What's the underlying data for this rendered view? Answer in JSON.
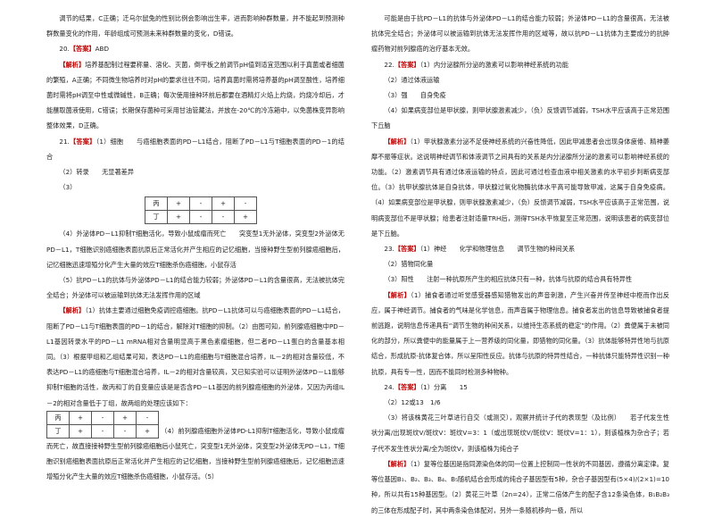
{
  "left": [
    {
      "text": "调节的结果，C正确；迁乌尔鼠兔的性别比例会影响出生率，进而影响种群数量，并不能起到预测种群数量变化的作用，年龄组成可预测未来种群数量的变化，D错误。"
    },
    {
      "lead": "20.",
      "tag": "【答案】",
      "text": "ABD"
    },
    {
      "tag": "【解析】",
      "text": "培养基配制过程要称量、溶化、灭菌，倒平板之前调节pH值到适宜范围以利于真菌或者细菌的繁殖，A正确；不同微生物培养时对pH的要求往往不同，培养真菌时需将培养基的pH调至酸性，培养细菌时需将pH调至中性或微碱性，B正确；每次使用接种环前后都要在酒精灯火焰上灼烧，灼烧冷却后，才能蘸取菌液使用，C错误；长期保存菌种可采用甘油管藏法，并放在-20℃的冷冻箱中，以免菌株变异影响整体效果，D正确。"
    },
    {
      "lead": "21.",
      "tag": "【答案】",
      "text": "（1）细胞　　与癌细胞表面的PD－L1结合，阻断了PD－L1与T细胞表面的PD－1的结合"
    },
    {
      "text": "（2）转录　　无显著差异"
    },
    {
      "text": "（3）"
    },
    {
      "table": [
        [
          "丙",
          "+",
          "-",
          "+",
          "-"
        ],
        [
          "丁",
          "+",
          "-",
          "-",
          "+"
        ]
      ]
    },
    {
      "text": "（4）外泌体PD－L1抑制T细胞活化，导致小鼠成瘤而死亡　　突变型1无外泌体，突变型2外泌体无PD－L1，T细胞识别癌细胞表面抗原后正常活化并产生相应的记忆细胞，当接种野生型前列腺癌细胞后，记忆细胞迅速增殖分化产生大量的效应T细胞杀伤癌细胞，小鼠存活"
    },
    {
      "text": "（5）抗PD－L1的抗体与外泌体PD－L1的结合能力较弱；外泌体PD－L1的含量很高，无法被抗体完全结合；外泌体可以被运输到抗体无法发挥作用的区域"
    },
    {
      "tag": "【解析】",
      "text": "（1）抗体主要通过细胞免疫调控癌细胞。抗PD－L1抗体可以与癌细胞表面的PD－L1结合，阻断了PD－L1与T细胞表面的PD－1的结合，解除对T细胞的抑制。（2）由图可知，前列腺癌细胞中PD－L1基因转录水平的PD－L1 mRNA相对含量明显高于黑色素瘤细胞，但二者PD－L1蛋白的含量基本相同。（3）根据甲组和乙组结果可知，表达PD－L1的癌细胞与T细胞混合培养，IL－2的相对含量较低，不表达PD－L1的癌细胞与T细胞混合培养，IL－2的相对含量较高，又已知实验可以证明外泌体PD－L1能够抑制T细胞的活性，故丙和丁的自变量应该是是否含PD－L1基因的前列腺癌细胞的外泌体，又因为丙组IL－2的相对含量低于丁组，故两组的处理应该如下："
    },
    {
      "table": [
        [
          "丙",
          "+",
          "-",
          "+",
          "-"
        ],
        [
          "丁",
          "+",
          "-",
          "-",
          "+"
        ]
      ],
      "after": "（4）前列腺癌细胞外泌体PD-L1抑制T细胞活化，导致小鼠成瘤而死亡，故直接接种野生型前列腺癌细胞后小鼠死亡，突变型1无外泌体，突变型2外泌体无PD－L1，T细胞识别癌细胞表面抗原后正常活化并产生相应的记忆细胞，当接种野生型前列腺癌细胞后，记忆细胞迅速增殖分化产生大量的效应T细胞杀伤癌细胞，小鼠存活。（5）"
    }
  ],
  "right": [
    {
      "text": "可能是由于抗PD－L1的抗体与外泌体PD－L1的结合能力较弱；外泌体PD－L1的含量很高，无法被抗体完全结合；外泌体可以被运输到抗体无法发挥作用的区域等，故以抗PD－L1抗体为主要成分的抗肿瘤药物对前列腺癌的治疗基本无效。"
    },
    {
      "lead": "22.",
      "tag": "【答案】",
      "text": "（1）内分泌腺所分泌的激素可以影响神经系统的功能"
    },
    {
      "text": "（2）通过体液运输"
    },
    {
      "text": "（3）强　　自身免疫"
    },
    {
      "text": "（4）如果病变部位是甲状腺，则甲状腺激素减少，（负）反馈调节减弱，TSH水平应该高于正常范围　　下丘脑"
    },
    {
      "tag": "【解析】",
      "text": "（1）甲状腺激素分泌不足使神经系统的兴奋性降低，因此甲减患者会出现身体疲倦、精神萎靡不振等症状。这说明神经调节和体液调节之间具有的关系是内分泌腺所分泌的激素可以影响神经系统的功能。（2）激素调节具有通过体液运输的特点，因此可通过检查血液中相关激素的水平初步判断病变部位。（3）抗甲状腺抗体是自身抗体，甲状腺过氧化物酶抗体水平高可能导致甲减，这属于自身免疫病。（4）如果病变部位是甲状腺，则甲状腺激素减少，（负）反馈调节减弱，TSH水平应该高于正常范围，说明病变部位不是甲状腺；给患者注射适量TRH后，测得TSH水平恢复至正常范围，说明该患者的病变部位是下丘脑。"
    },
    {
      "lead": "23.",
      "tag": "【答案】",
      "text": "（1）神经　　化学和物理信息　　调节生物的种间关系"
    },
    {
      "text": "（2）猎物同化量"
    },
    {
      "text": "（3）阳性　　注射一种抗原所产生的相应抗体只有一种，抗体与抗原的结合具有特异性"
    },
    {
      "tag": "【解析】",
      "text": "（1）捕食者通过听觉感受器感知猎物发出的声音刺激，产生兴奋并传至神经中枢而作出反应，属于神经调节。捕食者的气味是化学信息，而声音属于物理信息。捕食者发出的信息导致被捕食者提前逃跑，说明信息传递具有“调节生物的种间关系，以维持生态系统的稳定”的作用。（2）粪便属于未被同化的部分，所以粪便中的能量属于上一营养级的同化量，即猎物的同化量。（3）抗体能够特异性地与抗原结合，形成抗原-抗体复合体，所以呈阳性反应。抗体与抗原的特异性结合，一种抗体只能特异性识别一种抗原，具有专一性，因而不能同时检测多种物种。"
    },
    {
      "lead": "24.",
      "tag": "【答案】",
      "text": "（1）分离　　15"
    },
    {
      "text": "（2）12或13　1/6"
    },
    {
      "text": "（3）将该株黄花三叶草进行自交（或测交），观察并统计子代的表现型（及比例）　　若子代发生性状分离/出现斑纹Ⅴ/斑纹Ⅴ：斑纹Ⅴ=3：1（或出现斑纹Ⅴ/斑纹Ⅴ：斑纹Ⅴ=1：1），则该植株为杂合子；若子代不发生性状分离/全为斑纹Ⅴ，则该植株为纯合子"
    },
    {
      "tag": "【解析】",
      "text": "（1）复等位基因是指同源染色体的同一位置上控制同一性状的不同基因，遵循分离定律。复等位基因B₁、B₂、B₃、B₄、B₅随机结合会形成的纯合子基因型有5种，杂合子基因型有(5×4)/(2×1)=10种，所以共有15种基因型。（2）黄花三叶草（2n=24），正常二倍体产生的配子含12条染色体，B₁B₂B₃的三体在形成配子时，其中两条染色体配对，另外一条随机移向一极，所以"
    }
  ]
}
